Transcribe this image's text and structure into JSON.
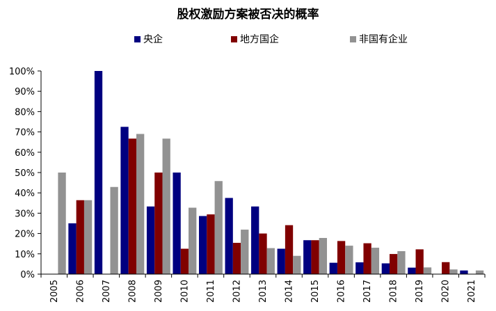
{
  "chart_data": {
    "type": "bar",
    "title": "股权激励方案被否决的概率",
    "categories": [
      "2005",
      "2006",
      "2007",
      "2008",
      "2009",
      "2010",
      "2011",
      "2012",
      "2013",
      "2014",
      "2015",
      "2016",
      "2017",
      "2018",
      "2019",
      "2020",
      "2021"
    ],
    "series": [
      {
        "name": "央企",
        "color": "#000080",
        "values": [
          0,
          25,
          100,
          72.5,
          33.3,
          50,
          28.6,
          37.5,
          33.3,
          12.5,
          16.7,
          5.6,
          5.8,
          5.3,
          3.2,
          0,
          1.8
        ]
      },
      {
        "name": "地方国企",
        "color": "#800000",
        "values": [
          0,
          36.4,
          0,
          66.7,
          50,
          12.5,
          29.4,
          15.4,
          20,
          24.1,
          16.7,
          16.3,
          15.2,
          9.9,
          12.2,
          5.9,
          0
        ]
      },
      {
        "name": "非国有企业",
        "color": "#929292",
        "values": [
          50,
          36.4,
          42.9,
          69,
          66.7,
          32.7,
          45.8,
          21.9,
          12.8,
          9,
          17.8,
          14,
          13,
          11.3,
          3.3,
          2.3,
          1.8
        ]
      }
    ],
    "yticks": [
      "0%",
      "10%",
      "20%",
      "30%",
      "40%",
      "50%",
      "60%",
      "70%",
      "80%",
      "90%",
      "100%"
    ],
    "ylim": [
      0,
      100
    ],
    "grid": false,
    "legend_position": "top"
  }
}
